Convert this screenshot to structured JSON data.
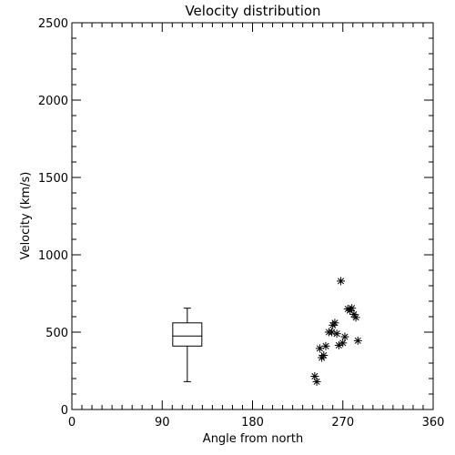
{
  "chart_data": {
    "type": "scatter",
    "title": "Velocity distribution",
    "xlabel": "Angle from north",
    "ylabel": "Velocity (km/s)",
    "xlim": [
      0,
      360
    ],
    "ylim": [
      0,
      2500
    ],
    "x_ticks": [
      0,
      90,
      180,
      270,
      360
    ],
    "y_ticks": [
      0,
      500,
      1000,
      1500,
      2000,
      2500
    ],
    "grid": false,
    "legend": "none",
    "marker": "asterisk",
    "color": "#000000",
    "boxplot": {
      "x": 115,
      "min": 180,
      "q1": 410,
      "median": 475,
      "q3": 560,
      "max": 655
    },
    "points": [
      {
        "x": 242,
        "y": 215
      },
      {
        "x": 244,
        "y": 180
      },
      {
        "x": 247,
        "y": 395
      },
      {
        "x": 249,
        "y": 335
      },
      {
        "x": 251,
        "y": 350
      },
      {
        "x": 253,
        "y": 410
      },
      {
        "x": 256,
        "y": 500
      },
      {
        "x": 259,
        "y": 500
      },
      {
        "x": 260,
        "y": 545
      },
      {
        "x": 262,
        "y": 560
      },
      {
        "x": 264,
        "y": 490
      },
      {
        "x": 266,
        "y": 415
      },
      {
        "x": 268,
        "y": 830
      },
      {
        "x": 270,
        "y": 430
      },
      {
        "x": 272,
        "y": 470
      },
      {
        "x": 275,
        "y": 650
      },
      {
        "x": 277,
        "y": 640
      },
      {
        "x": 279,
        "y": 655
      },
      {
        "x": 281,
        "y": 615
      },
      {
        "x": 283,
        "y": 595
      },
      {
        "x": 285,
        "y": 445
      }
    ]
  }
}
